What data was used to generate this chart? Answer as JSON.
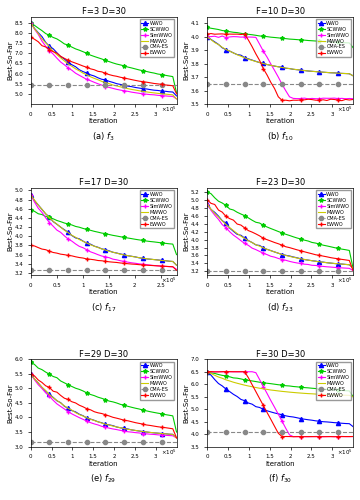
{
  "subplots": [
    {
      "title": "F=3 D=30",
      "label": "(a) $f_3$",
      "xlabel": "Iteration",
      "ylabel": "Best-So-Far",
      "xlim": [
        0,
        350000.0
      ],
      "ylim": [
        4.5,
        8.8
      ],
      "yticks": [
        5.0,
        5.5,
        6.0,
        6.5,
        7.0,
        7.5,
        8.0,
        8.5
      ],
      "xtick_vals": [
        0,
        0.5,
        1.0,
        1.5,
        2.0,
        2.5,
        3.0
      ],
      "series": {
        "WWO": {
          "color": "#0000FF",
          "marker": "^",
          "style": "-",
          "start": 8.5,
          "end": 4.9
        },
        "SCWWO": {
          "color": "#00CC00",
          "marker": "*",
          "style": "-",
          "start": 8.5,
          "end": 5.05
        },
        "SimWWO": {
          "color": "#FF00FF",
          "marker": "+",
          "style": "-",
          "start": 8.5,
          "end": 4.75
        },
        "MWWO": {
          "color": "#CCCC00",
          "marker": "",
          "style": "-",
          "start": 8.5,
          "end": 4.75
        },
        "CMA-ES": {
          "color": "#888888",
          "marker": "o",
          "style": "--",
          "start": 5.45,
          "end": 5.45
        },
        "EWWO": {
          "color": "#FF0000",
          "marker": "+",
          "style": "-",
          "start": 7.8,
          "end": 5.0
        }
      }
    },
    {
      "title": "F=10 D=30",
      "label": "(b) $f_{10}$",
      "xlabel": "Iteration",
      "ylabel": "Best-So-Far",
      "xlim": [
        0,
        350000.0
      ],
      "ylim": [
        3.5,
        4.15
      ],
      "yticks": [
        3.5,
        3.6,
        3.7,
        3.8,
        3.9,
        4.0,
        4.1
      ],
      "xtick_vals": [
        0,
        0.5,
        1.0,
        1.5,
        2.0,
        2.5,
        3.0
      ],
      "series": {
        "WWO": {
          "color": "#0000FF",
          "marker": "^",
          "style": "-",
          "start": 4.0,
          "end": 3.71
        },
        "SCWWO": {
          "color": "#00CC00",
          "marker": "*",
          "style": "-",
          "start": 4.07,
          "end": 3.92
        },
        "SimWWO": {
          "color": "#FF00FF",
          "marker": "+",
          "style": "-",
          "start": 4.0,
          "end": 3.54
        },
        "MWWO": {
          "color": "#CCCC00",
          "marker": "",
          "style": "-",
          "start": 4.0,
          "end": 3.71
        },
        "CMA-ES": {
          "color": "#888888",
          "marker": "o",
          "style": "--",
          "start": 3.65,
          "end": 3.65
        },
        "EWWO": {
          "color": "#FF0000",
          "marker": "+",
          "style": "-",
          "start": 4.02,
          "end": 3.53
        }
      }
    },
    {
      "title": "F=17 D=30",
      "label": "(c) $f_{17}$",
      "xlabel": "Iteration",
      "ylabel": "Best-So-Far",
      "xlim": [
        0,
        280000.0
      ],
      "ylim": [
        3.15,
        5.05
      ],
      "yticks": [
        3.2,
        3.4,
        3.6,
        3.8,
        4.0,
        4.2,
        4.4,
        4.6,
        4.8,
        5.0
      ],
      "xtick_vals": [
        0,
        0.5,
        1.0,
        1.5,
        2.0,
        2.5
      ],
      "series": {
        "WWO": {
          "color": "#0000FF",
          "marker": "^",
          "style": "-",
          "start": 4.9,
          "end": 3.37
        },
        "SCWWO": {
          "color": "#00CC00",
          "marker": "*",
          "style": "-",
          "start": 4.58,
          "end": 3.6
        },
        "SimWWO": {
          "color": "#FF00FF",
          "marker": "+",
          "style": "-",
          "start": 4.9,
          "end": 3.28
        },
        "MWWO": {
          "color": "#CCCC00",
          "marker": "",
          "style": "-",
          "start": 4.9,
          "end": 3.37
        },
        "CMA-ES": {
          "color": "#888888",
          "marker": "o",
          "style": "--",
          "start": 3.26,
          "end": 3.26
        },
        "EWWO": {
          "color": "#FF0000",
          "marker": "+",
          "style": "-",
          "start": 3.8,
          "end": 3.26
        }
      }
    },
    {
      "title": "F=23 D=30",
      "label": "(d) $f_{23}$",
      "xlabel": "Iteration",
      "ylabel": "Best-So-Far",
      "xlim": [
        0,
        350000.0
      ],
      "ylim": [
        3.1,
        5.3
      ],
      "yticks": [
        3.2,
        3.4,
        3.6,
        3.8,
        4.0,
        4.2,
        4.4,
        4.6,
        4.8,
        5.0,
        5.2
      ],
      "xtick_vals": [
        0,
        0.5,
        1.0,
        1.5,
        2.0,
        2.5,
        3.0
      ],
      "series": {
        "WWO": {
          "color": "#0000FF",
          "marker": "^",
          "style": "-",
          "start": 4.9,
          "end": 3.28
        },
        "SCWWO": {
          "color": "#00CC00",
          "marker": "*",
          "style": "-",
          "start": 5.2,
          "end": 3.28
        },
        "SimWWO": {
          "color": "#FF00FF",
          "marker": "+",
          "style": "-",
          "start": 4.9,
          "end": 3.22
        },
        "MWWO": {
          "color": "#CCCC00",
          "marker": "",
          "style": "-",
          "start": 4.9,
          "end": 3.28
        },
        "CMA-ES": {
          "color": "#888888",
          "marker": "o",
          "style": "--",
          "start": 3.2,
          "end": 3.2
        },
        "EWWO": {
          "color": "#FF0000",
          "marker": "+",
          "style": "-",
          "start": 5.0,
          "end": 3.22
        }
      }
    },
    {
      "title": "F=29 D=30",
      "label": "(e) $f_{29}$",
      "xlabel": "Iteration",
      "ylabel": "Best-So-Far",
      "xlim": [
        0,
        350000.0
      ],
      "ylim": [
        3.0,
        6.0
      ],
      "yticks": [
        3.0,
        3.5,
        4.0,
        4.5,
        5.0,
        5.5,
        6.0
      ],
      "xtick_vals": [
        0,
        0.5,
        1.0,
        1.5,
        2.0,
        2.5,
        3.0
      ],
      "series": {
        "WWO": {
          "color": "#0000FF",
          "marker": "^",
          "style": "-",
          "start": 5.5,
          "end": 3.3
        },
        "SCWWO": {
          "color": "#00CC00",
          "marker": "*",
          "style": "-",
          "start": 5.9,
          "end": 3.5
        },
        "SimWWO": {
          "color": "#FF00FF",
          "marker": "+",
          "style": "-",
          "start": 5.5,
          "end": 3.3
        },
        "MWWO": {
          "color": "#CCCC00",
          "marker": "",
          "style": "-",
          "start": 5.5,
          "end": 3.3
        },
        "CMA-ES": {
          "color": "#888888",
          "marker": "o",
          "style": "--",
          "start": 3.15,
          "end": 3.15
        },
        "EWWO": {
          "color": "#FF0000",
          "marker": "+",
          "style": "-",
          "start": 5.5,
          "end": 3.3
        }
      }
    },
    {
      "title": "F=30 D=30",
      "label": "(f) $f_{30}$",
      "xlabel": "Iteration",
      "ylabel": "Best-So-Far",
      "xlim": [
        0,
        350000.0
      ],
      "ylim": [
        3.5,
        7.0
      ],
      "yticks": [
        3.5,
        4.0,
        4.5,
        5.0,
        5.5,
        6.0,
        6.5,
        7.0
      ],
      "xtick_vals": [
        0,
        0.5,
        1.0,
        1.5,
        2.0,
        2.5,
        3.0
      ],
      "series": {
        "WWO": {
          "color": "#0000FF",
          "marker": "^",
          "style": "-",
          "start": 6.5,
          "end": 4.3
        },
        "SCWWO": {
          "color": "#00CC00",
          "marker": "*",
          "style": "-",
          "start": 6.5,
          "end": 5.5
        },
        "SimWWO": {
          "color": "#FF00FF",
          "marker": "+",
          "style": "-",
          "start": 6.5,
          "end": 3.9
        },
        "MWWO": {
          "color": "#CCCC00",
          "marker": "",
          "style": "-",
          "start": 6.5,
          "end": 5.5
        },
        "CMA-ES": {
          "color": "#888888",
          "marker": "o",
          "style": "--",
          "start": 4.1,
          "end": 4.1
        },
        "EWWO": {
          "color": "#FF0000",
          "marker": "+",
          "style": "-",
          "start": 6.5,
          "end": 3.9
        }
      }
    }
  ],
  "legend_order": [
    "WWO",
    "SCWWO",
    "SimWWO",
    "MWWO",
    "CMA-ES",
    "EWWO"
  ],
  "series_colors": {
    "WWO": "#0000FF",
    "SCWWO": "#00CC00",
    "SimWWO": "#FF00FF",
    "MWWO": "#CCCC00",
    "CMA-ES": "#888888",
    "EWWO": "#FF0000"
  },
  "series_markers": {
    "WWO": "^",
    "SCWWO": "*",
    "SimWWO": "+",
    "MWWO": "",
    "CMA-ES": "o",
    "EWWO": "+"
  },
  "series_styles": {
    "WWO": "-",
    "SCWWO": "-",
    "SimWWO": "-",
    "MWWO": "-",
    "CMA-ES": "--",
    "EWWO": "-"
  }
}
